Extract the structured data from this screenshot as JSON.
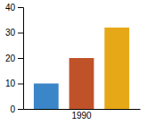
{
  "chart_data": {
    "type": "bar",
    "categories": [
      null,
      "1990",
      null
    ],
    "values": [
      10,
      20,
      32
    ],
    "colors": [
      "#3a86c8",
      "#c0522a",
      "#e6a817"
    ],
    "ylim": [
      0,
      40
    ],
    "yticks": [
      0,
      10,
      20,
      30,
      40
    ],
    "grid": false
  }
}
